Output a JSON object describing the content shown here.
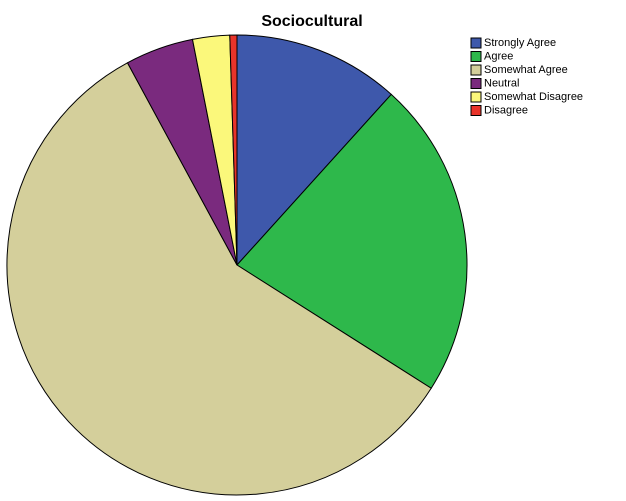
{
  "chart_data": {
    "type": "pie",
    "title": "Sociocultural",
    "categories": [
      "Strongly Agree",
      "Agree",
      "Somewhat Agree",
      "Neutral",
      "Somewhat Disagree",
      "Disagree"
    ],
    "values": [
      11.7,
      22.3,
      58.1,
      4.8,
      2.6,
      0.5
    ],
    "colors": [
      "#3e58ab",
      "#2eb84b",
      "#d4cf9b",
      "#7a2a7e",
      "#fbf87b",
      "#e8342a"
    ]
  }
}
